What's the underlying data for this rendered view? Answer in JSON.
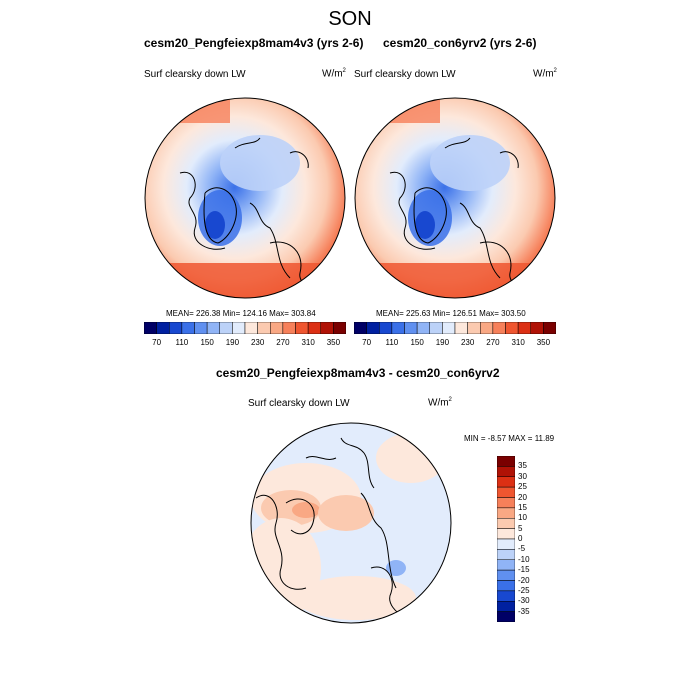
{
  "figure": {
    "title": "SON"
  },
  "panels": [
    {
      "title": "cesm20_Pengfeiexp8mam4v3 (yrs 2-6)",
      "variable": "Surf clearsky down LW",
      "units_base": "W/m",
      "units_exp": "2",
      "stats": "MEAN= 226.38  Min= 124.16  Max= 303.84"
    },
    {
      "title": "cesm20_con6yrv2 (yrs 2-6)",
      "variable": "Surf clearsky down LW",
      "units_base": "W/m",
      "units_exp": "2",
      "stats": "MEAN= 225.63  Min= 126.51  Max= 303.50"
    },
    {
      "title": "cesm20_Pengfeiexp8mam4v3 - cesm20_con6yrv2",
      "variable": "Surf clearsky down LW",
      "units_base": "W/m",
      "units_exp": "2",
      "stats": "MIN =  -8.57 MAX =  11.89"
    }
  ],
  "colorbar_horizontal": {
    "labels": [
      "70",
      "110",
      "150",
      "190",
      "230",
      "270",
      "310",
      "350"
    ],
    "colors": [
      "#000066",
      "#0020a0",
      "#1848d0",
      "#3a70e8",
      "#6090f0",
      "#90b4f6",
      "#bcd2f8",
      "#e2ecfc",
      "#fde8dc",
      "#fbcab0",
      "#f9a884",
      "#f6805a",
      "#ef5630",
      "#dc3014",
      "#b01206",
      "#7a0000"
    ]
  },
  "colorbar_vertical": {
    "labels": [
      "35",
      "30",
      "25",
      "20",
      "15",
      "10",
      "5",
      "0",
      "-5",
      "-10",
      "-15",
      "-20",
      "-25",
      "-30",
      "-35"
    ],
    "colors": [
      "#7a0000",
      "#b01206",
      "#dc3014",
      "#ef5630",
      "#f6805a",
      "#f9a884",
      "#fbcab0",
      "#fde8dc",
      "#e2ecfc",
      "#bcd2f8",
      "#90b4f6",
      "#6090f0",
      "#3a70e8",
      "#1848d0",
      "#0020a0",
      "#000066"
    ]
  }
}
